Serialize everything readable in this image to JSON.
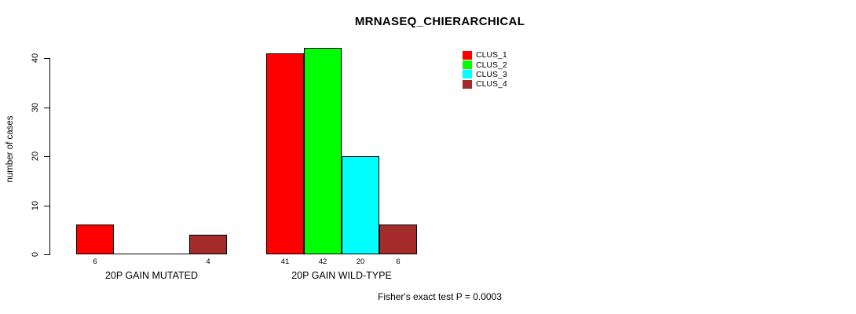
{
  "title": "MRNASEQ_CHIERARCHICAL",
  "ylabel": "number of cases",
  "footer": "Fisher's exact test P = 0.0003",
  "chart_data": {
    "type": "bar",
    "title": "MRNASEQ_CHIERARCHICAL",
    "xlabel": "",
    "ylabel": "number of cases",
    "categories": [
      "20P GAIN MUTATED",
      "20P GAIN WILD-TYPE"
    ],
    "series": [
      {
        "name": "CLUS_1",
        "color": "#ff0000",
        "values": [
          6,
          41
        ]
      },
      {
        "name": "CLUS_2",
        "color": "#00ff00",
        "values": [
          0,
          42
        ]
      },
      {
        "name": "CLUS_3",
        "color": "#00ffff",
        "values": [
          0,
          20
        ]
      },
      {
        "name": "CLUS_4",
        "color": "#a52a2a",
        "values": [
          4,
          6
        ]
      }
    ],
    "yticks": [
      0,
      10,
      20,
      30,
      40
    ],
    "ylim": [
      0,
      42
    ],
    "grid": false,
    "legend_position": "top-right",
    "bar_value_labels": "shown below nonzero bars only",
    "annotation": "Fisher's exact test P = 0.0003"
  }
}
